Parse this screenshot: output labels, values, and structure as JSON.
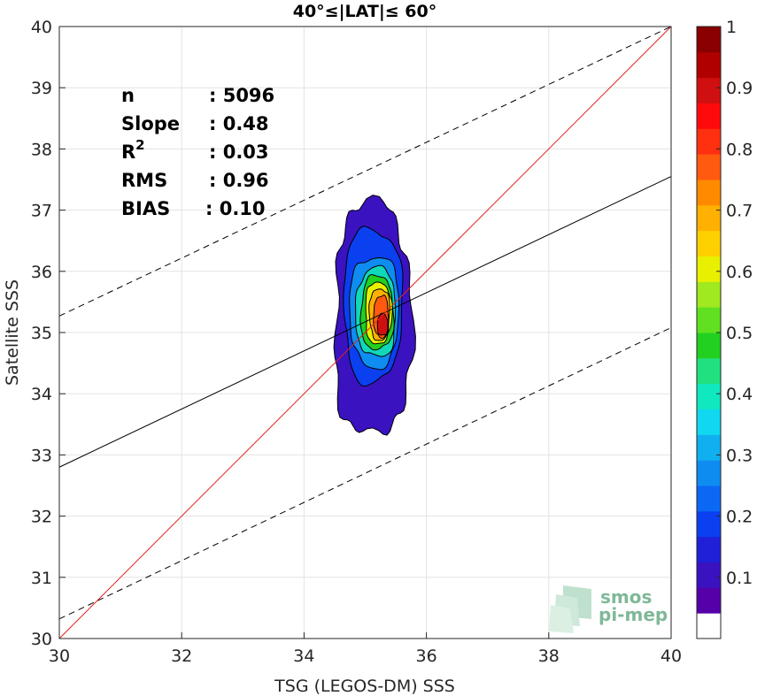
{
  "chart_data": {
    "type": "contour",
    "title": "40°≤|LAT|≤ 60°",
    "xlabel": "TSG (LEGOS-DM) SSS",
    "ylabel": "Satellite SSS",
    "xlim": [
      30,
      40
    ],
    "ylim": [
      30,
      40
    ],
    "x_ticks": [
      "30",
      "32",
      "34",
      "36",
      "38",
      "40"
    ],
    "y_ticks": [
      "30",
      "31",
      "32",
      "33",
      "34",
      "35",
      "36",
      "37",
      "38",
      "39",
      "40"
    ],
    "grid": true,
    "stats": [
      {
        "label": "n",
        "value": ": 5096"
      },
      {
        "label": "Slope",
        "value": ": 0.48"
      },
      {
        "label": "R",
        "sup": "2",
        "value": ": 0.03"
      },
      {
        "label": "RMS",
        "value": ": 0.96"
      },
      {
        "label": "BIAS",
        "value": ": 0.10"
      }
    ],
    "lines": {
      "identity": {
        "x": [
          30,
          40
        ],
        "y": [
          30,
          40
        ],
        "color": "#e0231e"
      },
      "regression": {
        "x": [
          30,
          40
        ],
        "y": [
          32.8,
          37.55
        ],
        "color": "#000000"
      },
      "upper_bound": {
        "x": [
          30,
          40
        ],
        "y": [
          35.27,
          40.0
        ],
        "style": "dashed"
      },
      "lower_bound": {
        "x": [
          30,
          40
        ],
        "y": [
          30.32,
          35.08
        ],
        "style": "dashed"
      }
    },
    "density_contours": {
      "center": [
        35.25,
        35.1
      ],
      "levels": [
        {
          "level": 0.05,
          "color": "#3a12c0",
          "x_range": [
            34.5,
            35.75
          ],
          "y_range": [
            33.3,
            37.1
          ]
        },
        {
          "level": 0.2,
          "color": "#0a40f0",
          "x_range": [
            34.65,
            35.6
          ],
          "y_range": [
            34.2,
            36.7
          ]
        },
        {
          "level": 0.3,
          "color": "#0f8cf0",
          "x_range": [
            34.75,
            35.55
          ],
          "y_range": [
            34.45,
            36.25
          ]
        },
        {
          "level": 0.4,
          "color": "#10d8b8",
          "x_range": [
            34.85,
            35.5
          ],
          "y_range": [
            34.6,
            36.05
          ]
        },
        {
          "level": 0.5,
          "color": "#22d020",
          "x_range": [
            34.93,
            35.46
          ],
          "y_range": [
            34.72,
            35.92
          ]
        },
        {
          "level": 0.6,
          "color": "#e8f000",
          "x_range": [
            35.0,
            35.43
          ],
          "y_range": [
            34.82,
            35.82
          ]
        },
        {
          "level": 0.7,
          "color": "#ffb000",
          "x_range": [
            35.07,
            35.4
          ],
          "y_range": [
            34.88,
            35.72
          ]
        },
        {
          "level": 0.8,
          "color": "#ff5a10",
          "x_range": [
            35.14,
            35.38
          ],
          "y_range": [
            34.92,
            35.6
          ]
        },
        {
          "level": 0.9,
          "color": "#d01010",
          "x_range": [
            35.2,
            35.37
          ],
          "y_range": [
            34.95,
            35.3
          ]
        }
      ]
    },
    "colorbar": {
      "ticks": [
        "0.1",
        "0.2",
        "0.3",
        "0.4",
        "0.5",
        "0.6",
        "0.7",
        "0.8",
        "0.9",
        "1"
      ],
      "range": [
        0,
        1
      ],
      "bands": [
        "#ffffff",
        "#5500a8",
        "#3a12c0",
        "#2020d8",
        "#0a40f0",
        "#0a68f5",
        "#0f8cf0",
        "#10b0f0",
        "#10d8f0",
        "#10e8c0",
        "#20e080",
        "#22d020",
        "#60e020",
        "#a0e820",
        "#e8f000",
        "#ffd000",
        "#ffb000",
        "#ff8a00",
        "#ff5a10",
        "#ff3010",
        "#ff0a0a",
        "#d01010",
        "#b00000",
        "#8a0000"
      ]
    },
    "watermark": {
      "line1": "smos",
      "line2": "pi-mep"
    }
  }
}
